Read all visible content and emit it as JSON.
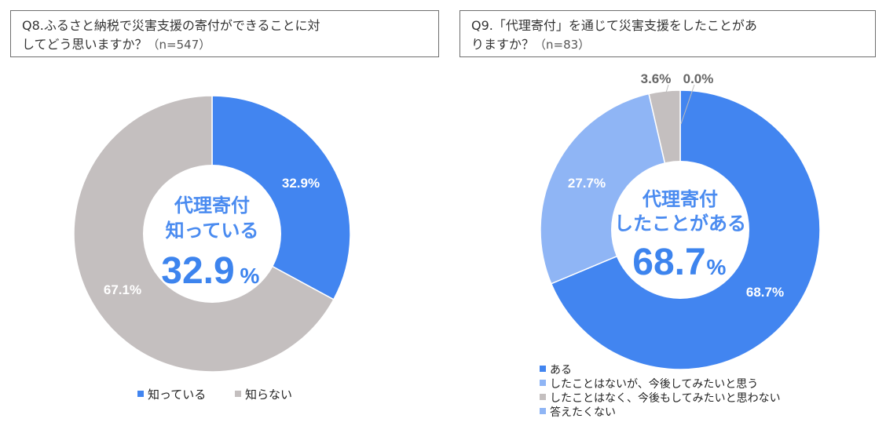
{
  "q8": {
    "title_line1": "Q8.ふるさと納税で災害支援の寄付ができることに対",
    "title_line2": "してどう思いますか？",
    "n_label": "（n=547）",
    "center_line1": "代理寄付",
    "center_line2": "知っている",
    "center_value": "32.9",
    "center_unit": "%"
  },
  "q9": {
    "title_line1": "Q9.「代理寄付」を通じて災害支援をしたことがあ",
    "title_line2": "りますか？",
    "n_label": "（n=83）",
    "center_line1": "代理寄付",
    "center_line2": "したことがある",
    "center_value": "68.7",
    "center_unit": "%"
  },
  "chart_data": [
    {
      "type": "pie",
      "title": "Q8.ふるさと納税で災害支援の寄付ができることに対してどう思いますか？（n=547）",
      "categories": [
        "知っている",
        "知らない"
      ],
      "values": [
        32.9,
        67.1
      ],
      "data_labels": [
        "32.9%",
        "67.1%"
      ],
      "colors": [
        "#4285f0",
        "#c4bfbf"
      ],
      "legend": "bottom"
    },
    {
      "type": "pie",
      "title": "Q9.「代理寄付」を通じて災害支援をしたことがありますか？（n=83）",
      "categories": [
        "ある",
        "したことはないが、今後してみたいと思う",
        "したことはなく、今後もしてみたいと思わない",
        "答えたくない"
      ],
      "values": [
        68.7,
        27.7,
        3.6,
        0.0
      ],
      "data_labels": [
        "68.7%",
        "27.7%",
        "3.6%",
        "0.0%"
      ],
      "colors": [
        "#4285f0",
        "#8fb5f5",
        "#c4bfbf",
        "#8fb5f5"
      ],
      "legend": "bottom-left"
    }
  ]
}
